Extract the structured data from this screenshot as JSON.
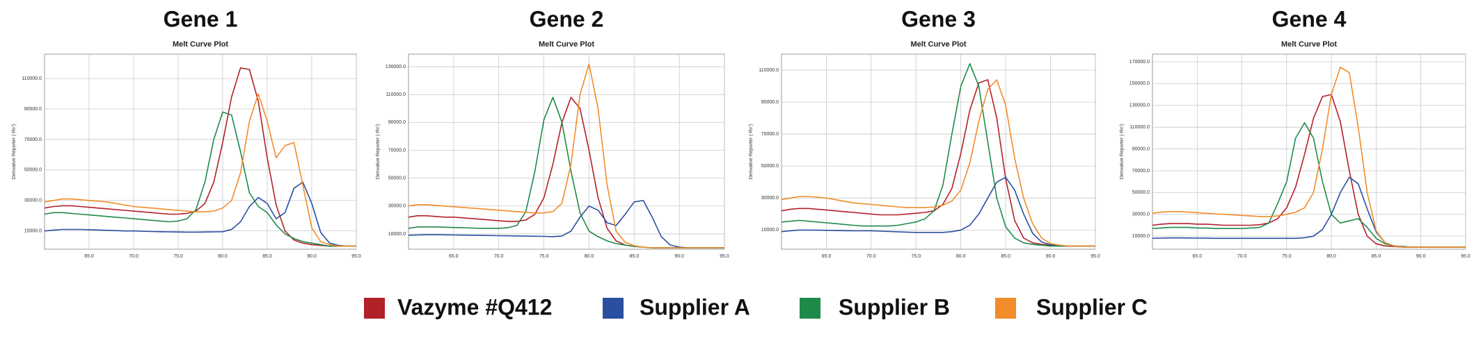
{
  "chart_data": [
    {
      "type": "line",
      "title": "Gene 1",
      "subtitle": "Melt Curve Plot",
      "y_label": "Derivative Reporter (-Rn')",
      "x": [
        60,
        61,
        62,
        63,
        64,
        65,
        66,
        67,
        68,
        69,
        70,
        71,
        72,
        73,
        74,
        75,
        76,
        77,
        78,
        79,
        80,
        81,
        82,
        83,
        84,
        85,
        86,
        87,
        88,
        89,
        90,
        91,
        92,
        93,
        94,
        95
      ],
      "xlim": [
        60,
        95
      ],
      "ylim": [
        -2000,
        126000
      ],
      "grid": true,
      "xticks": [
        {
          "value": 65,
          "label": "65.0"
        },
        {
          "value": 70,
          "label": "70.0"
        },
        {
          "value": 75,
          "label": "75.0"
        },
        {
          "value": 80,
          "label": "80.0"
        },
        {
          "value": 85,
          "label": "85.0"
        },
        {
          "value": 90,
          "label": "90.0"
        },
        {
          "value": 95,
          "label": "95.0"
        }
      ],
      "yticks": [
        {
          "value": 10000,
          "label": "10000.0"
        },
        {
          "value": 30000,
          "label": "30000.0"
        },
        {
          "value": 50000,
          "label": "50000.0"
        },
        {
          "value": 70000,
          "label": "70000.0"
        },
        {
          "value": 90000,
          "label": "90000.0"
        },
        {
          "value": 110000,
          "label": "110000.0"
        }
      ],
      "series": [
        {
          "name": "Vazyme #Q412",
          "color": "#b22028",
          "values": [
            25000,
            26000,
            26500,
            26500,
            26000,
            25500,
            25000,
            24500,
            24000,
            23500,
            23000,
            22500,
            22000,
            21500,
            21000,
            21000,
            21500,
            23000,
            28000,
            42000,
            68000,
            98000,
            117000,
            116000,
            95000,
            58000,
            27000,
            10000,
            4000,
            2000,
            1000,
            500,
            0,
            0,
            0,
            0
          ]
        },
        {
          "name": "Supplier A",
          "color": "#2a4ea0",
          "values": [
            10000,
            10500,
            11000,
            11000,
            11000,
            10800,
            10600,
            10400,
            10200,
            10000,
            10000,
            9800,
            9600,
            9500,
            9400,
            9300,
            9200,
            9200,
            9300,
            9400,
            9500,
            11000,
            16000,
            26000,
            32000,
            28000,
            18000,
            22000,
            38000,
            42000,
            28000,
            9000,
            2000,
            500,
            0,
            0
          ]
        },
        {
          "name": "Supplier B",
          "color": "#1e8a4a",
          "values": [
            21000,
            22000,
            22000,
            21500,
            21000,
            20500,
            20000,
            19500,
            19000,
            18500,
            18000,
            17500,
            17000,
            16500,
            16000,
            16500,
            18000,
            24000,
            42000,
            70000,
            88000,
            86000,
            62000,
            35000,
            26000,
            22000,
            14000,
            8000,
            5000,
            3000,
            2000,
            1000,
            0,
            0,
            0,
            0
          ]
        },
        {
          "name": "Supplier C",
          "color": "#f28c28",
          "values": [
            29000,
            30000,
            31000,
            31000,
            30500,
            30000,
            29500,
            29000,
            28000,
            27000,
            26000,
            25500,
            25000,
            24500,
            24000,
            23500,
            23000,
            22500,
            22500,
            23000,
            25000,
            30000,
            48000,
            82000,
            100000,
            82000,
            58000,
            66000,
            68000,
            40000,
            12000,
            3000,
            1000,
            0,
            0,
            0
          ]
        }
      ]
    },
    {
      "type": "line",
      "title": "Gene 2",
      "subtitle": "Melt Curve Plot",
      "y_label": "Derivative Reporter (-Rn')",
      "x": [
        60,
        61,
        62,
        63,
        64,
        65,
        66,
        67,
        68,
        69,
        70,
        71,
        72,
        73,
        74,
        75,
        76,
        77,
        78,
        79,
        80,
        81,
        82,
        83,
        84,
        85,
        86,
        87,
        88,
        89,
        90,
        91,
        92,
        93,
        94,
        95
      ],
      "xlim": [
        60,
        95
      ],
      "ylim": [
        -1000,
        139000
      ],
      "grid": true,
      "xticks": [
        {
          "value": 65,
          "label": "65.0"
        },
        {
          "value": 70,
          "label": "70.0"
        },
        {
          "value": 75,
          "label": "75.0"
        },
        {
          "value": 80,
          "label": "80.0"
        },
        {
          "value": 85,
          "label": "85.0"
        },
        {
          "value": 90,
          "label": "90.0"
        },
        {
          "value": 95,
          "label": "95.0"
        }
      ],
      "yticks": [
        {
          "value": 10000,
          "label": "10000.0"
        },
        {
          "value": 30000,
          "label": "30000.0"
        },
        {
          "value": 50000,
          "label": "50000.0"
        },
        {
          "value": 70000,
          "label": "70000.0"
        },
        {
          "value": 90000,
          "label": "90000.0"
        },
        {
          "value": 110000,
          "label": "110000.0"
        },
        {
          "value": 130000,
          "label": "130000.0"
        }
      ],
      "series": [
        {
          "name": "Vazyme #Q412",
          "color": "#b22028",
          "values": [
            22000,
            23000,
            23000,
            22500,
            22000,
            22000,
            21500,
            21000,
            20500,
            20000,
            19500,
            19000,
            19000,
            20000,
            24000,
            36000,
            60000,
            90000,
            108000,
            100000,
            70000,
            36000,
            14000,
            5000,
            2000,
            1000,
            500,
            0,
            0,
            0,
            0,
            0,
            0,
            0,
            0,
            0
          ]
        },
        {
          "name": "Supplier A",
          "color": "#2a4ea0",
          "values": [
            9000,
            9200,
            9400,
            9400,
            9300,
            9200,
            9100,
            9000,
            8900,
            8800,
            8700,
            8600,
            8500,
            8400,
            8300,
            8200,
            8000,
            8500,
            12000,
            22000,
            30000,
            27000,
            18000,
            16000,
            24000,
            33000,
            34000,
            22000,
            8000,
            2000,
            500,
            0,
            0,
            0,
            0,
            0
          ]
        },
        {
          "name": "Supplier B",
          "color": "#1e8a4a",
          "values": [
            14000,
            15000,
            15000,
            15000,
            14800,
            14600,
            14400,
            14200,
            14000,
            14000,
            14000,
            14500,
            16000,
            26000,
            55000,
            92000,
            108000,
            90000,
            55000,
            25000,
            12000,
            8000,
            5000,
            3000,
            2000,
            1000,
            500,
            0,
            0,
            0,
            0,
            0,
            0,
            0,
            0,
            0
          ]
        },
        {
          "name": "Supplier C",
          "color": "#f28c28",
          "values": [
            30000,
            31000,
            31000,
            30500,
            30000,
            29500,
            29000,
            28500,
            28000,
            27500,
            27000,
            26500,
            26000,
            25500,
            25000,
            25000,
            26000,
            32000,
            60000,
            110000,
            132000,
            100000,
            45000,
            12000,
            4000,
            1500,
            500,
            0,
            0,
            0,
            0,
            0,
            0,
            0,
            0,
            0
          ]
        }
      ]
    },
    {
      "type": "line",
      "title": "Gene 3",
      "subtitle": "Melt Curve Plot",
      "y_label": "Derivative Reporter (-Rn')",
      "x": [
        60,
        61,
        62,
        63,
        64,
        65,
        66,
        67,
        68,
        69,
        70,
        71,
        72,
        73,
        74,
        75,
        76,
        77,
        78,
        79,
        80,
        81,
        82,
        83,
        84,
        85,
        86,
        87,
        88,
        89,
        90,
        91,
        92,
        93,
        94,
        95
      ],
      "xlim": [
        60,
        95
      ],
      "ylim": [
        -2000,
        120000
      ],
      "grid": true,
      "xticks": [
        {
          "value": 65,
          "label": "65.0"
        },
        {
          "value": 70,
          "label": "70.0"
        },
        {
          "value": 75,
          "label": "75.0"
        },
        {
          "value": 80,
          "label": "80.0"
        },
        {
          "value": 85,
          "label": "85.0"
        },
        {
          "value": 90,
          "label": "90.0"
        },
        {
          "value": 95,
          "label": "95.0"
        }
      ],
      "yticks": [
        {
          "value": 10000,
          "label": "10000.0"
        },
        {
          "value": 30000,
          "label": "30000.0"
        },
        {
          "value": 50000,
          "label": "50000.0"
        },
        {
          "value": 70000,
          "label": "70000.0"
        },
        {
          "value": 90000,
          "label": "90000.0"
        },
        {
          "value": 110000,
          "label": "110000.0"
        }
      ],
      "series": [
        {
          "name": "Vazyme #Q412",
          "color": "#b22028",
          "values": [
            22000,
            23000,
            23500,
            23500,
            23000,
            22500,
            22000,
            21500,
            21000,
            20500,
            20000,
            19500,
            19500,
            19500,
            20000,
            20500,
            21000,
            22000,
            26000,
            36000,
            58000,
            85000,
            102000,
            104000,
            80000,
            42000,
            16000,
            5000,
            2000,
            1000,
            500,
            0,
            0,
            0,
            0,
            0
          ]
        },
        {
          "name": "Supplier A",
          "color": "#2a4ea0",
          "values": [
            9000,
            9500,
            10000,
            10000,
            9900,
            9800,
            9700,
            9600,
            9500,
            9500,
            9500,
            9300,
            9100,
            8900,
            8700,
            8500,
            8500,
            8500,
            8500,
            9000,
            10000,
            13000,
            20000,
            30000,
            40000,
            43000,
            35000,
            20000,
            8000,
            2500,
            800,
            0,
            0,
            0,
            0,
            0
          ]
        },
        {
          "name": "Supplier B",
          "color": "#1e8a4a",
          "values": [
            15000,
            15500,
            16000,
            15500,
            15000,
            14500,
            14000,
            13500,
            13000,
            12500,
            12500,
            12500,
            12500,
            13000,
            14000,
            15000,
            17000,
            22000,
            38000,
            70000,
            100000,
            114000,
            100000,
            65000,
            30000,
            12000,
            5000,
            2000,
            1000,
            500,
            0,
            0,
            0,
            0,
            0,
            0
          ]
        },
        {
          "name": "Supplier C",
          "color": "#f28c28",
          "values": [
            29000,
            30000,
            31000,
            31000,
            30500,
            30000,
            29000,
            28000,
            27000,
            26500,
            26000,
            25500,
            25000,
            24500,
            24000,
            24000,
            24000,
            24500,
            25500,
            28000,
            35000,
            52000,
            78000,
            98000,
            104000,
            88000,
            55000,
            30000,
            14000,
            5000,
            1500,
            500,
            0,
            0,
            0,
            0
          ]
        }
      ]
    },
    {
      "type": "line",
      "title": "Gene 4",
      "subtitle": "Melt Curve Plot",
      "y_label": "Derivative Reporter (-Rn')",
      "x": [
        60,
        61,
        62,
        63,
        64,
        65,
        66,
        67,
        68,
        69,
        70,
        71,
        72,
        73,
        74,
        75,
        76,
        77,
        78,
        79,
        80,
        81,
        82,
        83,
        84,
        85,
        86,
        87,
        88,
        89,
        90,
        91,
        92,
        93,
        94,
        95
      ],
      "xlim": [
        60,
        95
      ],
      "ylim": [
        -2000,
        177000
      ],
      "grid": true,
      "xticks": [
        {
          "value": 65,
          "label": "65.0"
        },
        {
          "value": 70,
          "label": "70.0"
        },
        {
          "value": 75,
          "label": "75.0"
        },
        {
          "value": 80,
          "label": "80.0"
        },
        {
          "value": 85,
          "label": "85.0"
        },
        {
          "value": 90,
          "label": "90.0"
        },
        {
          "value": 95,
          "label": "95.0"
        }
      ],
      "yticks": [
        {
          "value": 10000,
          "label": "10000.0"
        },
        {
          "value": 30000,
          "label": "30000.0"
        },
        {
          "value": 50000,
          "label": "50000.0"
        },
        {
          "value": 70000,
          "label": "70000.0"
        },
        {
          "value": 90000,
          "label": "90000.0"
        },
        {
          "value": 110000,
          "label": "110000.0"
        },
        {
          "value": 130000,
          "label": "130000.0"
        },
        {
          "value": 150000,
          "label": "150000.0"
        },
        {
          "value": 170000,
          "label": "170000.0"
        }
      ],
      "series": [
        {
          "name": "Vazyme #Q412",
          "color": "#b22028",
          "values": [
            20000,
            21000,
            21500,
            21500,
            21500,
            21000,
            21000,
            20500,
            20000,
            20000,
            20000,
            20000,
            20500,
            22000,
            26000,
            36000,
            55000,
            85000,
            118000,
            138000,
            140000,
            115000,
            70000,
            30000,
            10000,
            3000,
            1000,
            500,
            0,
            0,
            0,
            0,
            0,
            0,
            0,
            0
          ]
        },
        {
          "name": "Supplier A",
          "color": "#2a4ea0",
          "values": [
            8000,
            8200,
            8400,
            8400,
            8300,
            8200,
            8100,
            8000,
            8000,
            8000,
            8000,
            8000,
            8000,
            8000,
            8000,
            8000,
            8000,
            8500,
            10000,
            16000,
            30000,
            50000,
            64000,
            58000,
            35000,
            14000,
            4000,
            1000,
            0,
            0,
            0,
            0,
            0,
            0,
            0,
            0
          ]
        },
        {
          "name": "Supplier B",
          "color": "#1e8a4a",
          "values": [
            17000,
            17500,
            18000,
            18000,
            18000,
            17500,
            17500,
            17000,
            17000,
            17000,
            17000,
            17500,
            18000,
            22000,
            40000,
            60000,
            100000,
            114000,
            100000,
            60000,
            30000,
            22000,
            24000,
            26000,
            18000,
            8000,
            3000,
            1000,
            500,
            0,
            0,
            0,
            0,
            0,
            0,
            0
          ]
        },
        {
          "name": "Supplier C",
          "color": "#f28c28",
          "values": [
            31000,
            32000,
            32500,
            32500,
            32000,
            31500,
            31000,
            30500,
            30000,
            29500,
            29000,
            28500,
            28000,
            28000,
            28500,
            30000,
            32000,
            36000,
            50000,
            90000,
            140000,
            165000,
            160000,
            110000,
            50000,
            15000,
            4000,
            1000,
            0,
            0,
            0,
            0,
            0,
            0,
            0,
            0
          ]
        }
      ]
    }
  ]
}
